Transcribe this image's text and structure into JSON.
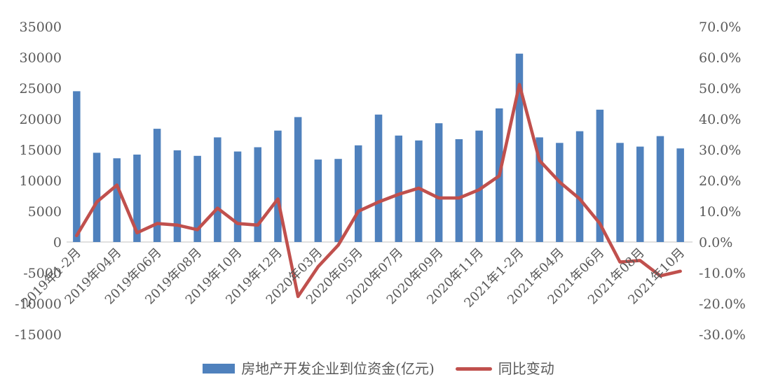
{
  "chart_data": {
    "type": "bar+line combo",
    "title": "",
    "background": "#ffffff",
    "grid": false,
    "categories": [
      "2019年1-2月",
      "2019年03月",
      "2019年04月",
      "2019年05月",
      "2019年06月",
      "2019年07月",
      "2019年08月",
      "2019年09月",
      "2019年10月",
      "2019年11月",
      "2019年12月",
      "2020年1-2月",
      "2020年03月",
      "2020年04月",
      "2020年05月",
      "2020年06月",
      "2020年07月",
      "2020年08月",
      "2020年09月",
      "2020年10月",
      "2020年11月",
      "2020年12月",
      "2021年1-2月",
      "2021年03月",
      "2021年04月",
      "2021年05月",
      "2021年06月",
      "2021年07月",
      "2021年08月",
      "2021年09月",
      "2021年10月"
    ],
    "x_axis": {
      "label_every": 2,
      "visible_tick_labels": [
        "2019年1-2月",
        "2019年04月",
        "2019年06月",
        "2019年08月",
        "2019年10月",
        "2019年12月",
        "2020年03月",
        "2020年05月",
        "2020年07月",
        "2020年09月",
        "2020年11月",
        "2021年1-2月",
        "2021年04月",
        "2021年06月",
        "2021年08月",
        "2021年10月"
      ]
    },
    "series": [
      {
        "name": "房地产开发企业到位资金(亿元)",
        "type": "bar",
        "axis": "left",
        "color": "#4f81bd",
        "values": [
          24500,
          14500,
          13600,
          14200,
          18400,
          14900,
          14000,
          17000,
          14700,
          15400,
          18100,
          20300,
          13400,
          13500,
          15700,
          20700,
          17300,
          16500,
          19300,
          16700,
          18100,
          21700,
          30600,
          17000,
          16100,
          18000,
          21500,
          16100,
          15500,
          17200,
          15200
        ]
      },
      {
        "name": "同比变动",
        "type": "line",
        "axis": "right",
        "color": "#c0504d",
        "values_pct": [
          2.1,
          13,
          18.5,
          3,
          6,
          5.5,
          4,
          11,
          6,
          5.5,
          14,
          -17.7,
          -8,
          -1,
          10,
          13,
          15.5,
          17.5,
          14.3,
          14.3,
          17,
          21.5,
          51.2,
          26.5,
          19.5,
          14,
          6,
          -6.5,
          -6,
          -11,
          -9.5
        ]
      }
    ],
    "left_axis": {
      "min": -15000,
      "max": 35000,
      "step": 5000,
      "ticks": [
        "35000",
        "30000",
        "25000",
        "20000",
        "15000",
        "10000",
        "5000",
        "0",
        "-5000",
        "-10000",
        "-15000"
      ]
    },
    "right_axis": {
      "min": -30,
      "max": 70,
      "step": 10,
      "ticks": [
        "70.0%",
        "60.0%",
        "50.0%",
        "40.0%",
        "30.0%",
        "20.0%",
        "10.0%",
        "0.0%",
        "-10.0%",
        "-20.0%",
        "-30.0%"
      ]
    },
    "legend": [
      {
        "label": "房地产开发企业到位资金(亿元)",
        "swatch": "bar",
        "color": "#4f81bd"
      },
      {
        "label": "同比变动",
        "swatch": "line",
        "color": "#c0504d"
      }
    ],
    "axis_line_color": "#d6d6d6",
    "text_color": "#595959"
  }
}
